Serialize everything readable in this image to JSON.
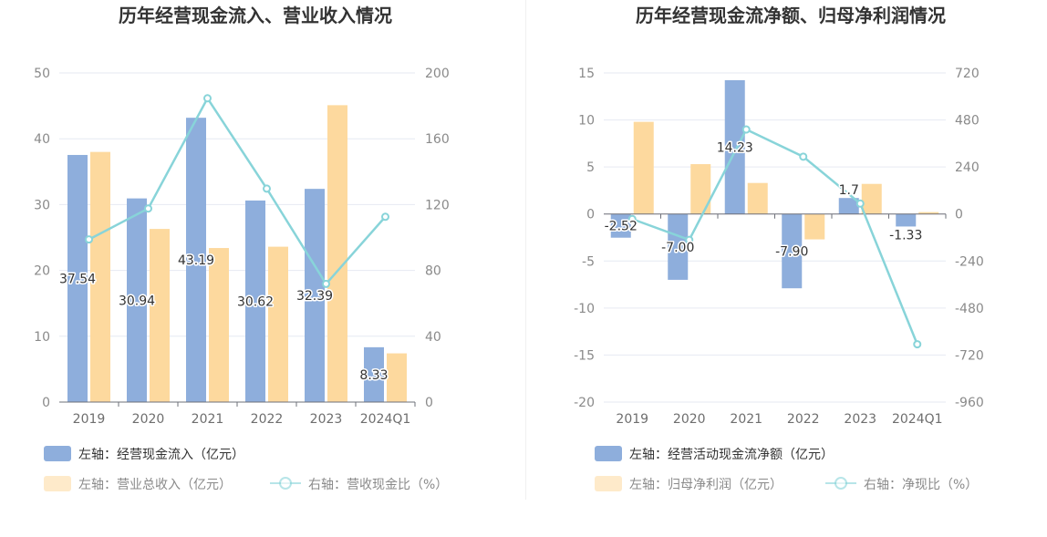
{
  "chart_data": [
    {
      "type": "bar",
      "title": "历年经营现金流入、营业收入情况",
      "categories": [
        "2019",
        "2020",
        "2021",
        "2022",
        "2023",
        "2024Q1"
      ],
      "left_axis": {
        "min": 0,
        "max": 50,
        "ticks": [
          "0",
          "10",
          "20",
          "30",
          "40",
          "50"
        ]
      },
      "right_axis": {
        "min": 0,
        "max": 200,
        "ticks": [
          "0",
          "40",
          "80",
          "120",
          "160",
          "200"
        ]
      },
      "grid": true,
      "legend_position": "bottom-left",
      "series": [
        {
          "name": "左轴：经营现金流入（亿元）",
          "kind": "bar",
          "axis": "left",
          "color": "#8eaedc",
          "values": [
            37.54,
            30.94,
            43.19,
            30.62,
            32.39,
            8.33
          ],
          "labels": [
            "37.54",
            "30.94",
            "43.19",
            "30.62",
            "32.39",
            "8.33"
          ]
        },
        {
          "name": "左轴：营业总收入（亿元）",
          "kind": "bar",
          "axis": "left",
          "color": "#fdd99e",
          "values": [
            38.0,
            26.3,
            23.4,
            23.6,
            45.1,
            7.4
          ]
        },
        {
          "name": "右轴：营收现金比（%）",
          "kind": "line",
          "axis": "right",
          "color": "#88d4d9",
          "values": [
            98.8,
            117.6,
            184.6,
            129.7,
            71.8,
            112.6
          ]
        }
      ]
    },
    {
      "type": "bar",
      "title": "历年经营现金流净额、归母净利润情况",
      "categories": [
        "2019",
        "2020",
        "2021",
        "2022",
        "2023",
        "2024Q1"
      ],
      "left_axis": {
        "min": -20,
        "max": 15,
        "ticks": [
          "-20",
          "-15",
          "-10",
          "-5",
          "0",
          "5",
          "10",
          "15"
        ]
      },
      "right_axis": {
        "min": -960,
        "max": 720,
        "ticks": [
          "-960",
          "-720",
          "-480",
          "-240",
          "0",
          "240",
          "480",
          "720"
        ]
      },
      "grid": true,
      "legend_position": "bottom-left",
      "series": [
        {
          "name": "左轴：经营活动现金流净额（亿元）",
          "kind": "bar",
          "axis": "left",
          "color": "#8eaedc",
          "values": [
            -2.52,
            -7.0,
            14.23,
            -7.9,
            1.7,
            -1.33
          ],
          "labels": [
            "-2.52",
            "-7.00",
            "14.23",
            "-7.90",
            "1.7",
            "-1.33"
          ]
        },
        {
          "name": "左轴：归母净利润（亿元）",
          "kind": "bar",
          "axis": "left",
          "color": "#fdd99e",
          "values": [
            9.8,
            5.3,
            3.3,
            -2.7,
            3.2,
            0.2
          ]
        },
        {
          "name": "右轴：净现比（%）",
          "kind": "line",
          "axis": "right",
          "color": "#88d4d9",
          "values": [
            -25.7,
            -132.1,
            431.2,
            292.6,
            53.1,
            -665.0
          ]
        }
      ]
    }
  ]
}
